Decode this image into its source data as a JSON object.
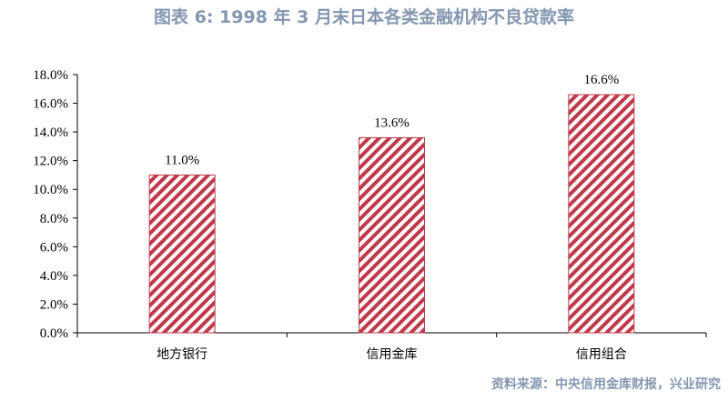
{
  "title": "图表 6:  1998 年 3 月末日本各类金融机构不良贷款率",
  "source": "资料来源：中央信用金库财报，兴业研究",
  "chart_data": {
    "type": "bar",
    "categories": [
      "地方银行",
      "信用金库",
      "信用组合"
    ],
    "values": [
      11.0,
      13.6,
      16.6
    ],
    "data_labels": [
      "11.0%",
      "13.6%",
      "16.6%"
    ],
    "ylim": [
      0,
      18
    ],
    "yticks": [
      0,
      2,
      4,
      6,
      8,
      10,
      12,
      14,
      16,
      18
    ],
    "ytick_labels": [
      "0.0%",
      "2.0%",
      "4.0%",
      "6.0%",
      "8.0%",
      "10.0%",
      "12.0%",
      "14.0%",
      "16.0%",
      "18.0%"
    ],
    "grid": false,
    "legend": "none",
    "bar_pattern": "diagonal-stripes",
    "bar_color": "#c0394b"
  }
}
